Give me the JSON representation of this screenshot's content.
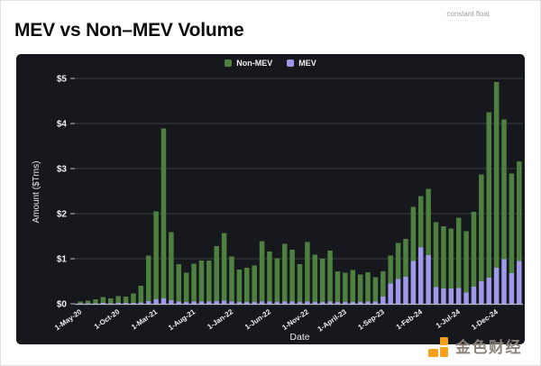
{
  "page": {
    "title": "MEV vs Non–MEV Volume",
    "top_right_note": "constant float"
  },
  "watermark": {
    "text": "金色财经",
    "logo_color": "#f7a11a"
  },
  "chart_data": {
    "type": "bar",
    "stacked": true,
    "title": "MEV vs Non–MEV Volume",
    "xlabel": "Date",
    "ylabel": "Amount ($Trns)",
    "ylim": [
      0,
      5
    ],
    "grid": true,
    "legend_position": "top-center",
    "y_ticks": [
      "$0",
      "$1",
      "$2",
      "$3",
      "$4",
      "$5"
    ],
    "x_tick_every": 5,
    "x_tick_labels": [
      "1-May-20",
      "1-Oct-20",
      "1-Mar-21",
      "1-Aug-21",
      "1-Jan-22",
      "1-Jun-22",
      "1-Nov-22",
      "1-April-23",
      "1-Sep-23",
      "1-Feb-24",
      "1-Jul-24",
      "1-Dec-24"
    ],
    "months": [
      "May-20",
      "Jun-20",
      "Jul-20",
      "Aug-20",
      "Sep-20",
      "Oct-20",
      "Nov-20",
      "Dec-20",
      "Jan-21",
      "Feb-21",
      "Mar-21",
      "Apr-21",
      "May-21",
      "Jun-21",
      "Jul-21",
      "Aug-21",
      "Sep-21",
      "Oct-21",
      "Nov-21",
      "Dec-21",
      "Jan-22",
      "Feb-22",
      "Mar-22",
      "Apr-22",
      "May-22",
      "Jun-22",
      "Jul-22",
      "Aug-22",
      "Sep-22",
      "Oct-22",
      "Nov-22",
      "Dec-22",
      "Jan-23",
      "Feb-23",
      "Mar-23",
      "Apr-23",
      "May-23",
      "Jun-23",
      "Jul-23",
      "Aug-23",
      "Sep-23",
      "Oct-23",
      "Nov-23",
      "Dec-23",
      "Jan-24",
      "Feb-24",
      "Mar-24",
      "Apr-24",
      "May-24",
      "Jun-24",
      "Jul-24",
      "Aug-24",
      "Sep-24",
      "Oct-24",
      "Nov-24",
      "Dec-24",
      "Jan-25",
      "Feb-25",
      "Mar-25"
    ],
    "series": [
      {
        "name": "Non-MEV",
        "color": "#4e8040",
        "stack_order": "top",
        "values": [
          0.04,
          0.06,
          0.09,
          0.13,
          0.11,
          0.15,
          0.14,
          0.21,
          0.37,
          1.01,
          1.95,
          3.77,
          1.51,
          0.83,
          0.65,
          0.84,
          0.91,
          0.91,
          1.22,
          1.5,
          1.0,
          0.72,
          0.76,
          0.81,
          1.34,
          1.11,
          0.97,
          1.28,
          1.15,
          0.84,
          1.32,
          1.05,
          0.96,
          1.13,
          0.68,
          0.65,
          0.71,
          0.61,
          0.65,
          0.54,
          0.56,
          0.62,
          0.8,
          0.84,
          1.2,
          1.14,
          1.47,
          1.44,
          1.38,
          1.33,
          1.56,
          1.36,
          1.66,
          2.37,
          3.67,
          4.12,
          3.1,
          2.21,
          2.21
        ]
      },
      {
        "name": "MEV",
        "color": "#9f99ea",
        "stack_order": "bottom",
        "values": [
          0.01,
          0.01,
          0.01,
          0.02,
          0.01,
          0.02,
          0.02,
          0.02,
          0.03,
          0.06,
          0.1,
          0.12,
          0.08,
          0.05,
          0.04,
          0.05,
          0.05,
          0.05,
          0.06,
          0.07,
          0.05,
          0.04,
          0.04,
          0.04,
          0.05,
          0.05,
          0.04,
          0.05,
          0.05,
          0.04,
          0.05,
          0.04,
          0.04,
          0.05,
          0.04,
          0.04,
          0.04,
          0.04,
          0.05,
          0.05,
          0.16,
          0.45,
          0.55,
          0.6,
          0.95,
          1.25,
          1.08,
          0.37,
          0.34,
          0.34,
          0.35,
          0.25,
          0.38,
          0.5,
          0.58,
          0.8,
          0.99,
          0.68,
          0.95
        ]
      }
    ],
    "colors": {
      "panel_bg": "#16181d",
      "grid": "#3b3e44",
      "axis_line": "#b9bcc2",
      "tick_text": "#f2f2f2"
    }
  }
}
